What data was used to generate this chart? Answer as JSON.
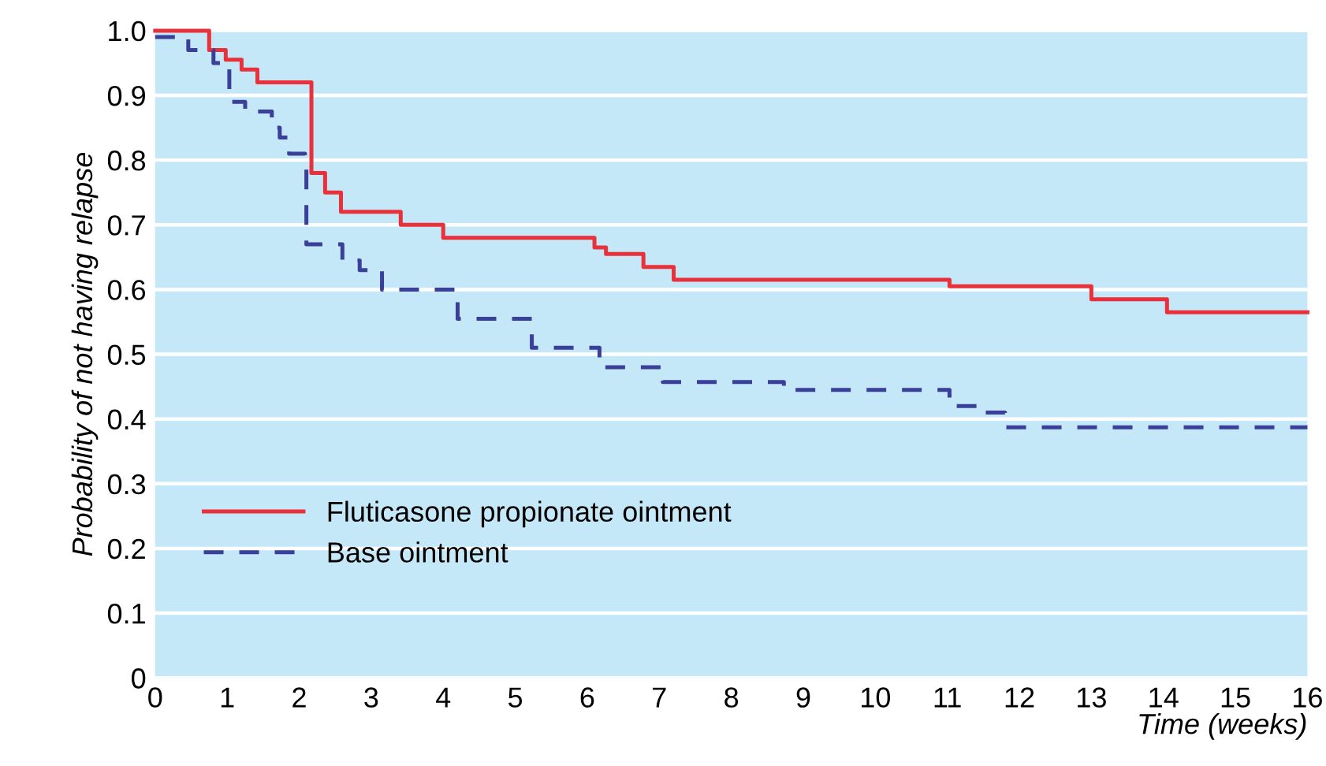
{
  "chart_data": {
    "type": "step",
    "xlabel": "Time (weeks)",
    "ylabel": "Probability of not having relapse",
    "xlim": [
      0,
      16
    ],
    "xticks": [
      0,
      1,
      2,
      3,
      4,
      5,
      6,
      7,
      8,
      9,
      10,
      11,
      12,
      13,
      14,
      15,
      16
    ],
    "ylim": [
      0,
      1.0
    ],
    "yticks": [
      0,
      0.1,
      0.2,
      0.3,
      0.4,
      0.5,
      0.6,
      0.7,
      0.8,
      0.9,
      {
        "value": 1.0,
        "label": "1.0"
      }
    ],
    "grid": "y",
    "legend": "bottom left",
    "series": [
      {
        "name": "Fluticasone propionate ointment",
        "color": "#e8313a",
        "line_style": "solid",
        "x": [
          0,
          0.75,
          0.98,
          1.2,
          1.42,
          2.17,
          2.36,
          2.58,
          3.41,
          4.0,
          6.1,
          6.26,
          6.78,
          7.2,
          11.03,
          13.0,
          14.05,
          16
        ],
        "values": [
          1.0,
          0.97,
          0.955,
          0.94,
          0.92,
          0.78,
          0.75,
          0.72,
          0.7,
          0.68,
          0.665,
          0.655,
          0.635,
          0.615,
          0.605,
          0.585,
          0.565,
          0.565
        ]
      },
      {
        "name": "Base ointment",
        "color": "#3a3f99",
        "line_style": "dashed",
        "x": [
          0,
          0.46,
          0.81,
          1.03,
          1.25,
          1.62,
          1.73,
          1.86,
          2.08,
          2.1,
          2.6,
          2.84,
          3.15,
          4.2,
          5.23,
          6.17,
          7.05,
          8.73,
          11.03,
          11.53,
          11.8,
          16
        ],
        "values": [
          0.99,
          0.97,
          0.95,
          0.89,
          0.875,
          0.85,
          0.835,
          0.81,
          0.8,
          0.67,
          0.645,
          0.63,
          0.6,
          0.555,
          0.51,
          0.48,
          0.457,
          0.445,
          0.42,
          0.41,
          0.387,
          0.387
        ]
      }
    ]
  }
}
